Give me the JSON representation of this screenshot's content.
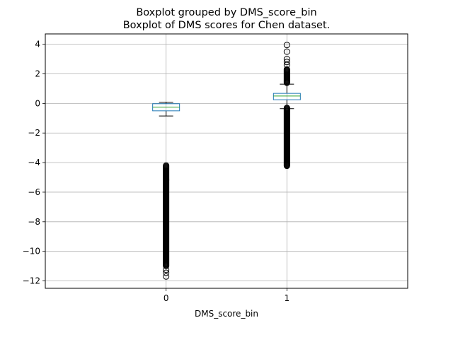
{
  "chart_data": {
    "type": "box",
    "title": "Boxplot grouped by DMS_score_bin",
    "subtitle": "Boxplot of DMS scores for Chen dataset.",
    "xlabel": "DMS_score_bin",
    "ylabel": "",
    "ylim": [
      -12.5,
      4.7
    ],
    "yticks": [
      4,
      2,
      0,
      -2,
      -4,
      -6,
      -8,
      -10,
      -12
    ],
    "grid": true,
    "categories": [
      "0",
      "1"
    ],
    "boxes": [
      {
        "category": "0",
        "whisker_low": -0.85,
        "q1": -0.5,
        "median": -0.25,
        "q3": -0.02,
        "whisker_high": 0.08,
        "outliers_dense_range": [
          -11.0,
          -4.2
        ],
        "outliers_sparse": [
          -11.25,
          -11.45,
          -11.7
        ]
      },
      {
        "category": "1",
        "whisker_low": -0.35,
        "q1": 0.25,
        "median": 0.5,
        "q3": 0.68,
        "whisker_high": 1.3,
        "outliers_dense_range": [
          -4.25,
          -0.3
        ],
        "outliers_dense_high_range": [
          1.35,
          2.3
        ],
        "outliers_sparse": [
          2.6,
          2.8,
          3.0,
          3.5,
          3.95
        ]
      }
    ],
    "colors": {
      "box": "#1f77b4",
      "median": "#2ca02c",
      "whisker": "#000000",
      "grid": "#b0b0b0"
    }
  }
}
